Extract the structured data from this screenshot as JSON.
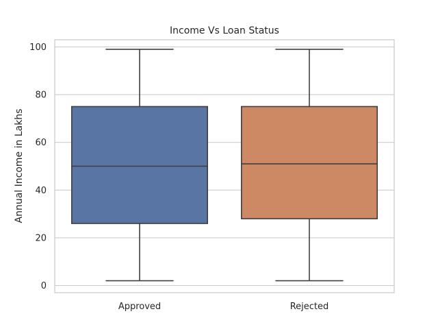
{
  "chart_data": {
    "type": "box",
    "title": "Income Vs Loan Status",
    "xlabel": "",
    "ylabel": "Annual Income in Lakhs",
    "ylim": [
      -3,
      103
    ],
    "yticks": [
      0,
      20,
      40,
      60,
      80,
      100
    ],
    "grid": true,
    "categories": [
      "Approved",
      "Rejected"
    ],
    "boxes": [
      {
        "category": "Approved",
        "min": 2,
        "q1": 26,
        "median": 50,
        "q3": 75,
        "max": 99,
        "color": "#5875a4"
      },
      {
        "category": "Rejected",
        "min": 2,
        "q1": 28,
        "median": 51,
        "q3": 75,
        "max": 99,
        "color": "#cc8963"
      }
    ]
  },
  "colors": {
    "grid": "#cccccc",
    "frame": "#cccccc",
    "line": "#3f3f3f",
    "text": "#262626"
  }
}
